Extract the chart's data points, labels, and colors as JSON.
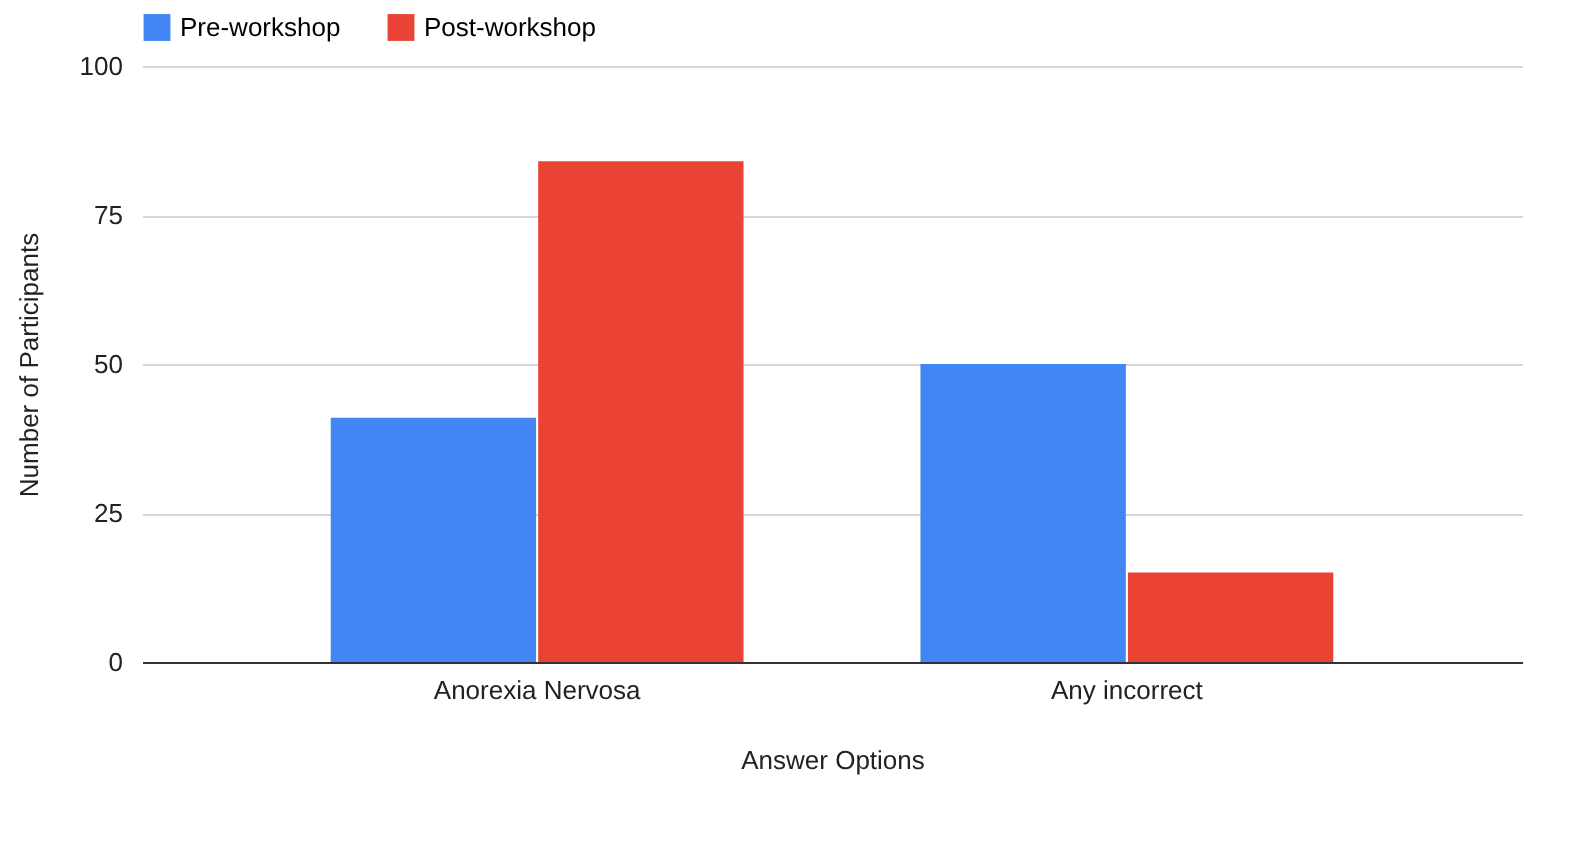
{
  "chart_data": {
    "type": "bar",
    "xlabel": "Answer Options",
    "ylabel": "Number of Participants",
    "categories": [
      "Anorexia Nervosa",
      "Any incorrect"
    ],
    "series": [
      {
        "name": "Pre-workshop",
        "color": "#4285f4",
        "values": [
          41,
          50
        ]
      },
      {
        "name": "Post-workshop",
        "color": "#ea4335",
        "values": [
          84,
          15
        ]
      }
    ],
    "ylim": [
      0,
      100
    ],
    "yticks": [
      0,
      25,
      50,
      75,
      100
    ],
    "grid": "y",
    "legend": "top"
  }
}
